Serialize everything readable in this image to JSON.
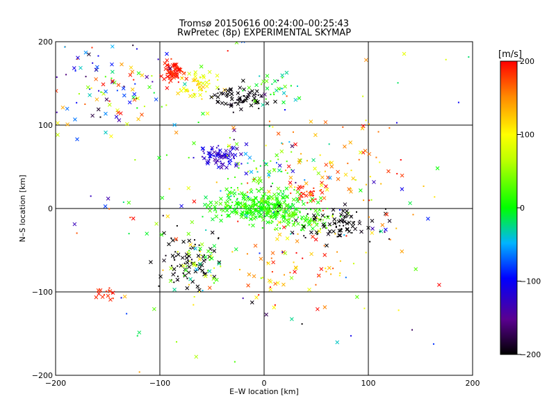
{
  "chart_data": {
    "type": "scatter",
    "title": "Tromsø 20150616 00:24:00–00:25:43",
    "subtitle": "RwPretec (8p) EXPERIMENTAL SKYMAP",
    "xlabel": "E–W location [km]",
    "ylabel": "N–S location [km]",
    "xlim": [
      -200,
      200
    ],
    "ylim": [
      -200,
      200
    ],
    "xticks": [
      -200,
      -100,
      0,
      100,
      200
    ],
    "yticks": [
      -200,
      -100,
      0,
      100,
      200
    ],
    "grid": true,
    "colorbar": {
      "label": "[m/s]",
      "range": [
        -200,
        200
      ],
      "ticks": [
        200,
        100,
        0,
        -100,
        -200
      ]
    },
    "clusters": [
      {
        "cx": -85,
        "cy": 163,
        "sx": 6,
        "sy": 7,
        "v": 190,
        "spread": 15,
        "n": 70
      },
      {
        "cx": -62,
        "cy": 148,
        "sx": 9,
        "sy": 9,
        "v": 100,
        "spread": 35,
        "n": 55
      },
      {
        "cx": -25,
        "cy": 133,
        "sx": 13,
        "sy": 7,
        "v": -200,
        "spread": 10,
        "n": 70
      },
      {
        "cx": 12,
        "cy": 140,
        "sx": 15,
        "sy": 10,
        "v": 0,
        "spread": 40,
        "n": 30
      },
      {
        "cx": -45,
        "cy": 62,
        "sx": 10,
        "sy": 7,
        "v": -120,
        "spread": 25,
        "n": 75
      },
      {
        "cx": -5,
        "cy": 2,
        "sx": 22,
        "sy": 9,
        "v": 10,
        "spread": 20,
        "n": 300
      },
      {
        "cx": 32,
        "cy": -12,
        "sx": 18,
        "sy": 7,
        "v": 20,
        "spread": 25,
        "n": 90
      },
      {
        "cx": 70,
        "cy": -17,
        "sx": 22,
        "sy": 10,
        "v": -200,
        "spread": 10,
        "n": 80
      },
      {
        "cx": 42,
        "cy": 20,
        "sx": 7,
        "sy": 6,
        "v": 185,
        "spread": 20,
        "n": 30
      },
      {
        "cx": -72,
        "cy": -60,
        "sx": 13,
        "sy": 18,
        "v": -200,
        "spread": 10,
        "n": 80
      },
      {
        "cx": -62,
        "cy": -68,
        "sx": 14,
        "sy": 20,
        "v": 40,
        "spread": 90,
        "n": 50
      },
      {
        "cx": 0,
        "cy": 40,
        "sx": 18,
        "sy": 22,
        "v": 0,
        "spread": 60,
        "n": 60
      },
      {
        "cx": -150,
        "cy": -102,
        "sx": 6,
        "sy": 5,
        "v": 190,
        "spread": 10,
        "n": 14
      },
      {
        "cx": -155,
        "cy": 150,
        "sx": 30,
        "sy": 30,
        "v": 0,
        "spread": 200,
        "n": 100
      },
      {
        "cx": 60,
        "cy": 45,
        "sx": 45,
        "sy": 40,
        "v": 150,
        "spread": 60,
        "n": 90
      },
      {
        "cx": 30,
        "cy": -75,
        "sx": 30,
        "sy": 25,
        "v": 150,
        "spread": 60,
        "n": 50
      },
      {
        "cx": 0,
        "cy": 0,
        "sx": 110,
        "sy": 110,
        "v": 0,
        "spread": 200,
        "n": 180
      }
    ]
  }
}
